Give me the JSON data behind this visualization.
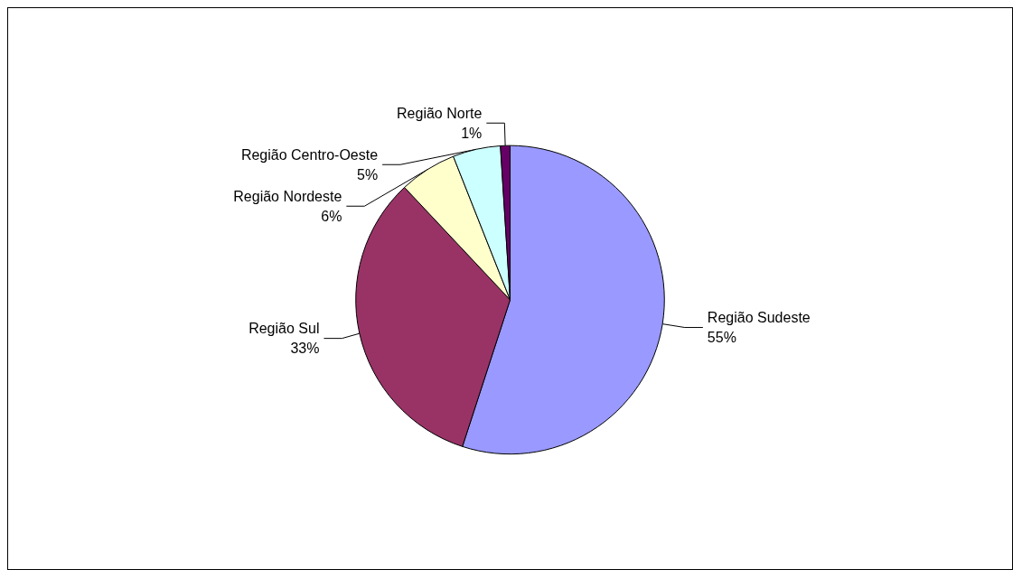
{
  "chart_data": {
    "type": "pie",
    "categories": [
      "Região Sudeste",
      "Região Sul",
      "Região Nordeste",
      "Região Centro-Oeste",
      "Região Norte"
    ],
    "values": [
      55,
      33,
      6,
      5,
      1
    ],
    "colors": [
      "#9999ff",
      "#993366",
      "#ffffcc",
      "#ccffff",
      "#660066"
    ],
    "value_labels": [
      "55%",
      "33%",
      "6%",
      "5%",
      "1%"
    ]
  }
}
